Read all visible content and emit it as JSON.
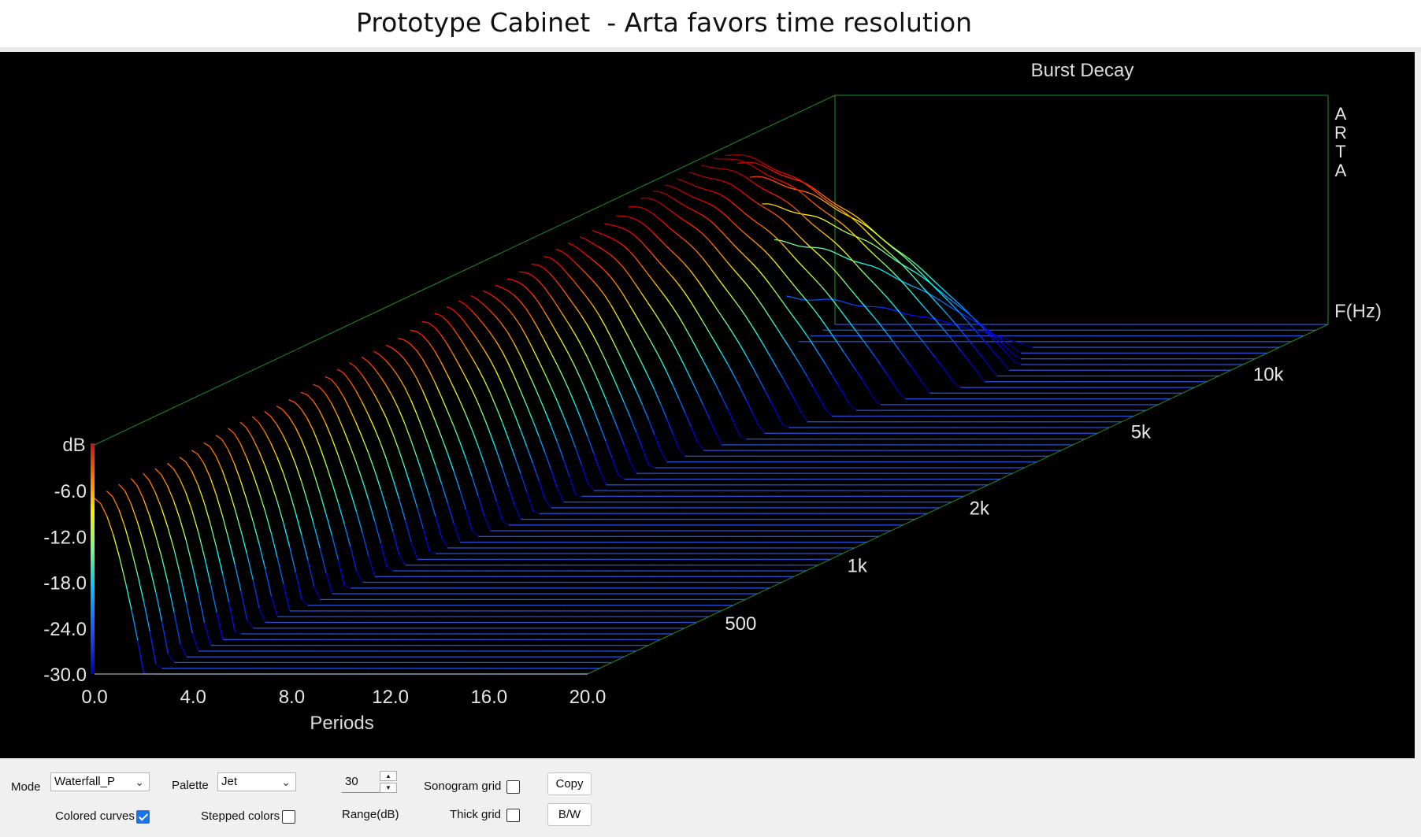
{
  "window": {
    "title": "Prototype Cabinet  - Arta favors time resolution"
  },
  "colors": {
    "background": "#000000",
    "frame": "#1f8f1f",
    "floor_line": "#2a4fd6",
    "text": "#e6e6e6"
  },
  "chart_data": {
    "type": "waterfall",
    "title": "Burst Decay",
    "watermark": "ARTA",
    "xlabel": "Periods",
    "x_ticks": [
      "0.0",
      "4.0",
      "8.0",
      "12.0",
      "16.0",
      "20.0"
    ],
    "xlim": [
      0,
      20
    ],
    "ylabel": "dB",
    "y_ticks": [
      "-6.0",
      "-12.0",
      "-18.0",
      "-24.0",
      "-30.0"
    ],
    "ylim": [
      -30,
      0
    ],
    "zlabel": "F(Hz)",
    "z_ticks": [
      {
        "label": "500",
        "hz": 500
      },
      {
        "label": "1k",
        "hz": 1000
      },
      {
        "label": "2k",
        "hz": 2000
      },
      {
        "label": "5k",
        "hz": 5000
      },
      {
        "label": "10k",
        "hz": 10000
      }
    ],
    "zlim_hz": [
      300,
      20000
    ],
    "palette": "Jet",
    "range_db": 30,
    "slices": 62,
    "peak_level_db_by_frequency": [
      {
        "hz": 300,
        "db": -7
      },
      {
        "hz": 800,
        "db": -6
      },
      {
        "hz": 2000,
        "db": -4
      },
      {
        "hz": 4500,
        "db": -3
      },
      {
        "hz": 6500,
        "db": -1.5
      },
      {
        "hz": 8000,
        "db": -1.5
      },
      {
        "hz": 10000,
        "db": -0.5
      },
      {
        "hz": 11000,
        "db": -1
      },
      {
        "hz": 12500,
        "db": -6
      },
      {
        "hz": 14000,
        "db": -14
      },
      {
        "hz": 16000,
        "db": -30
      }
    ],
    "decay_to_floor_periods_by_frequency": [
      {
        "hz": 300,
        "periods": 2
      },
      {
        "hz": 1000,
        "periods": 3
      },
      {
        "hz": 2000,
        "periods": 4
      },
      {
        "hz": 4000,
        "periods": 5
      },
      {
        "hz": 6000,
        "periods": 7
      },
      {
        "hz": 8000,
        "periods": 9
      },
      {
        "hz": 10000,
        "periods": 11
      },
      {
        "hz": 12000,
        "periods": 11
      },
      {
        "hz": 14000,
        "periods": 10
      }
    ]
  },
  "controls": {
    "mode_label": "Mode",
    "mode_value": "Waterfall_P",
    "palette_label": "Palette",
    "palette_value": "Jet",
    "range_value": "30",
    "range_label": "Range(dB)",
    "colored_curves_label": "Colored curves",
    "colored_curves_checked": true,
    "stepped_colors_label": "Stepped colors",
    "sonogram_grid_label": "Sonogram grid",
    "thick_grid_label": "Thick grid",
    "copy_label": "Copy",
    "bw_label": "B/W"
  }
}
